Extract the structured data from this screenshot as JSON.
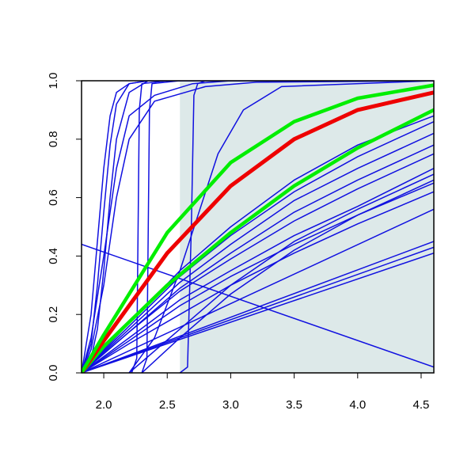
{
  "chart_data": {
    "type": "line",
    "xlim": [
      1.825,
      4.6
    ],
    "ylim": [
      0,
      1
    ],
    "xticks": [
      {
        "value": 2,
        "label": "2.0"
      },
      {
        "value": 2.5,
        "label": "2.5"
      },
      {
        "value": 3,
        "label": "3.0"
      },
      {
        "value": 3.5,
        "label": "3.5"
      },
      {
        "value": 4,
        "label": "4.0"
      },
      {
        "value": 4.5,
        "label": "4.5"
      }
    ],
    "yticks": [
      {
        "value": 0,
        "label": "0.0"
      },
      {
        "value": 0.2,
        "label": "0.2"
      },
      {
        "value": 0.4,
        "label": "0.4"
      },
      {
        "value": 0.6,
        "label": "0.6"
      },
      {
        "value": 0.8,
        "label": "0.8"
      },
      {
        "value": 1,
        "label": "1.0"
      }
    ],
    "shade": {
      "from": 2.6,
      "to": 4.6,
      "color": "#dde9e9"
    },
    "series": [
      {
        "color": "#1010e0",
        "width": 1.5,
        "x": [
          1.825,
          1.9,
          1.95,
          2.0,
          2.05,
          2.1,
          2.2,
          2.35,
          2.6
        ],
        "values": [
          0,
          0.2,
          0.45,
          0.7,
          0.88,
          0.96,
          0.99,
          1,
          1
        ]
      },
      {
        "color": "#1010e0",
        "width": 1.5,
        "x": [
          1.825,
          1.9,
          1.95,
          2.0,
          2.05,
          2.1,
          2.2,
          2.35,
          2.6
        ],
        "values": [
          0,
          0.1,
          0.3,
          0.55,
          0.78,
          0.92,
          0.99,
          1,
          1
        ]
      },
      {
        "color": "#1010e0",
        "width": 1.5,
        "x": [
          1.825,
          1.9,
          1.95,
          2.0,
          2.05,
          2.1,
          2.2,
          2.35,
          2.6
        ],
        "values": [
          0,
          0.05,
          0.15,
          0.35,
          0.6,
          0.8,
          0.96,
          1,
          1
        ]
      },
      {
        "color": "#1010e0",
        "width": 1.5,
        "x": [
          1.825,
          1.9,
          2.0,
          2.1,
          2.2,
          2.4,
          2.7,
          3.0
        ],
        "values": [
          0,
          0.12,
          0.4,
          0.7,
          0.88,
          0.95,
          0.99,
          1
        ]
      },
      {
        "color": "#1010e0",
        "width": 1.5,
        "x": [
          1.825,
          1.9,
          2.0,
          2.1,
          2.2,
          2.4,
          2.8,
          3.2,
          4.6
        ],
        "values": [
          0,
          0.08,
          0.3,
          0.6,
          0.8,
          0.93,
          0.98,
          0.995,
          1
        ]
      },
      {
        "color": "#1010e0",
        "width": 1.5,
        "x": [
          2.22,
          2.26,
          2.28,
          2.3,
          2.5,
          4.6
        ],
        "values": [
          0,
          0.05,
          0.9,
          0.99,
          1,
          1
        ]
      },
      {
        "color": "#1010e0",
        "width": 1.5,
        "x": [
          2.3,
          2.34,
          2.36,
          2.38,
          2.6,
          4.6
        ],
        "values": [
          0,
          0.05,
          0.9,
          0.99,
          1,
          1
        ]
      },
      {
        "color": "#1010e0",
        "width": 1.5,
        "x": [
          2.6,
          2.66,
          2.69,
          2.71,
          2.74,
          2.8,
          4.6
        ],
        "values": [
          0,
          0.02,
          0.5,
          0.95,
          0.99,
          1,
          1
        ]
      },
      {
        "color": "#1010e0",
        "width": 1.5,
        "x": [
          2.2,
          2.4,
          2.6,
          2.75,
          2.9,
          3.1,
          3.4,
          4.6
        ],
        "values": [
          0,
          0.12,
          0.35,
          0.55,
          0.75,
          0.9,
          0.98,
          1
        ]
      },
      {
        "color": "#1010e0",
        "width": 1.5,
        "x": [
          1.825,
          4.6
        ],
        "values": [
          0.44,
          0.02
        ]
      },
      {
        "color": "#1010e0",
        "width": 1.5,
        "x": [
          1.825,
          4.6
        ],
        "values": [
          0,
          0.45
        ]
      },
      {
        "color": "#1010e0",
        "width": 1.5,
        "x": [
          1.825,
          4.6
        ],
        "values": [
          0,
          0.43
        ]
      },
      {
        "color": "#1010e0",
        "width": 1.5,
        "x": [
          1.825,
          4.6
        ],
        "values": [
          0,
          0.41
        ]
      },
      {
        "color": "#1010e0",
        "width": 1.5,
        "x": [
          1.825,
          4.6
        ],
        "values": [
          0,
          0.56
        ]
      },
      {
        "color": "#1010e0",
        "width": 1.5,
        "x": [
          1.825,
          2.2,
          2.6,
          3.0,
          3.5,
          4.0,
          4.6
        ],
        "values": [
          0,
          0.1,
          0.2,
          0.3,
          0.41,
          0.51,
          0.62
        ]
      },
      {
        "color": "#1010e0",
        "width": 1.5,
        "x": [
          1.825,
          2.2,
          2.6,
          3.0,
          3.5,
          4.0,
          4.6
        ],
        "values": [
          0,
          0.11,
          0.23,
          0.33,
          0.44,
          0.54,
          0.66
        ]
      },
      {
        "color": "#1010e0",
        "width": 1.5,
        "x": [
          1.825,
          2.2,
          2.6,
          3.0,
          3.5,
          4.0,
          4.6
        ],
        "values": [
          0,
          0.12,
          0.25,
          0.35,
          0.47,
          0.57,
          0.7
        ]
      },
      {
        "color": "#1010e0",
        "width": 1.5,
        "x": [
          1.825,
          2.2,
          2.6,
          3.0,
          3.5,
          4.0,
          4.6
        ],
        "values": [
          0,
          0.14,
          0.28,
          0.39,
          0.52,
          0.63,
          0.75
        ]
      },
      {
        "color": "#1010e0",
        "width": 1.5,
        "x": [
          1.825,
          2.2,
          2.6,
          3.0,
          3.5,
          4.0,
          4.6
        ],
        "values": [
          0,
          0.14,
          0.29,
          0.41,
          0.55,
          0.66,
          0.78
        ]
      },
      {
        "color": "#1010e0",
        "width": 1.5,
        "x": [
          1.825,
          2.2,
          2.6,
          3.0,
          3.5,
          4.0,
          4.6
        ],
        "values": [
          0,
          0.15,
          0.31,
          0.44,
          0.59,
          0.7,
          0.82
        ]
      },
      {
        "color": "#1010e0",
        "width": 1.5,
        "x": [
          1.825,
          2.2,
          2.6,
          3.0,
          3.5,
          4.0,
          4.6
        ],
        "values": [
          0,
          0.16,
          0.33,
          0.47,
          0.62,
          0.74,
          0.86
        ]
      },
      {
        "color": "#1010e0",
        "width": 1.5,
        "x": [
          1.825,
          2.2,
          2.6,
          3.0,
          3.5,
          4.0,
          4.6
        ],
        "values": [
          0,
          0.17,
          0.35,
          0.5,
          0.66,
          0.78,
          0.88
        ]
      },
      {
        "color": "#1010e0",
        "width": 1.5,
        "x": [
          2.2,
          2.6,
          3.0,
          3.5,
          4.0,
          4.6
        ],
        "values": [
          0,
          0.15,
          0.3,
          0.45,
          0.56,
          0.68
        ]
      },
      {
        "color": "#1010e0",
        "width": 1.5,
        "x": [
          2.3,
          2.6,
          3.0,
          3.5,
          4.0,
          4.6
        ],
        "values": [
          0,
          0.12,
          0.27,
          0.42,
          0.54,
          0.65
        ]
      },
      {
        "color": "#00ee00",
        "width": 4.5,
        "x": [
          1.825,
          2.0,
          2.5,
          3.0,
          3.5,
          4.0,
          4.6
        ],
        "values": [
          0,
          0.09,
          0.3,
          0.48,
          0.64,
          0.77,
          0.9
        ]
      },
      {
        "color": "#ee0000",
        "width": 5,
        "x": [
          1.825,
          2.0,
          2.5,
          3.0,
          3.5,
          4.0,
          4.6
        ],
        "values": [
          0,
          0.11,
          0.41,
          0.64,
          0.8,
          0.9,
          0.96
        ]
      },
      {
        "color": "#00ee00",
        "width": 4.5,
        "x": [
          1.825,
          2.0,
          2.5,
          3.0,
          3.5,
          4.0,
          4.6
        ],
        "values": [
          0,
          0.13,
          0.48,
          0.72,
          0.86,
          0.94,
          0.985
        ]
      }
    ]
  }
}
